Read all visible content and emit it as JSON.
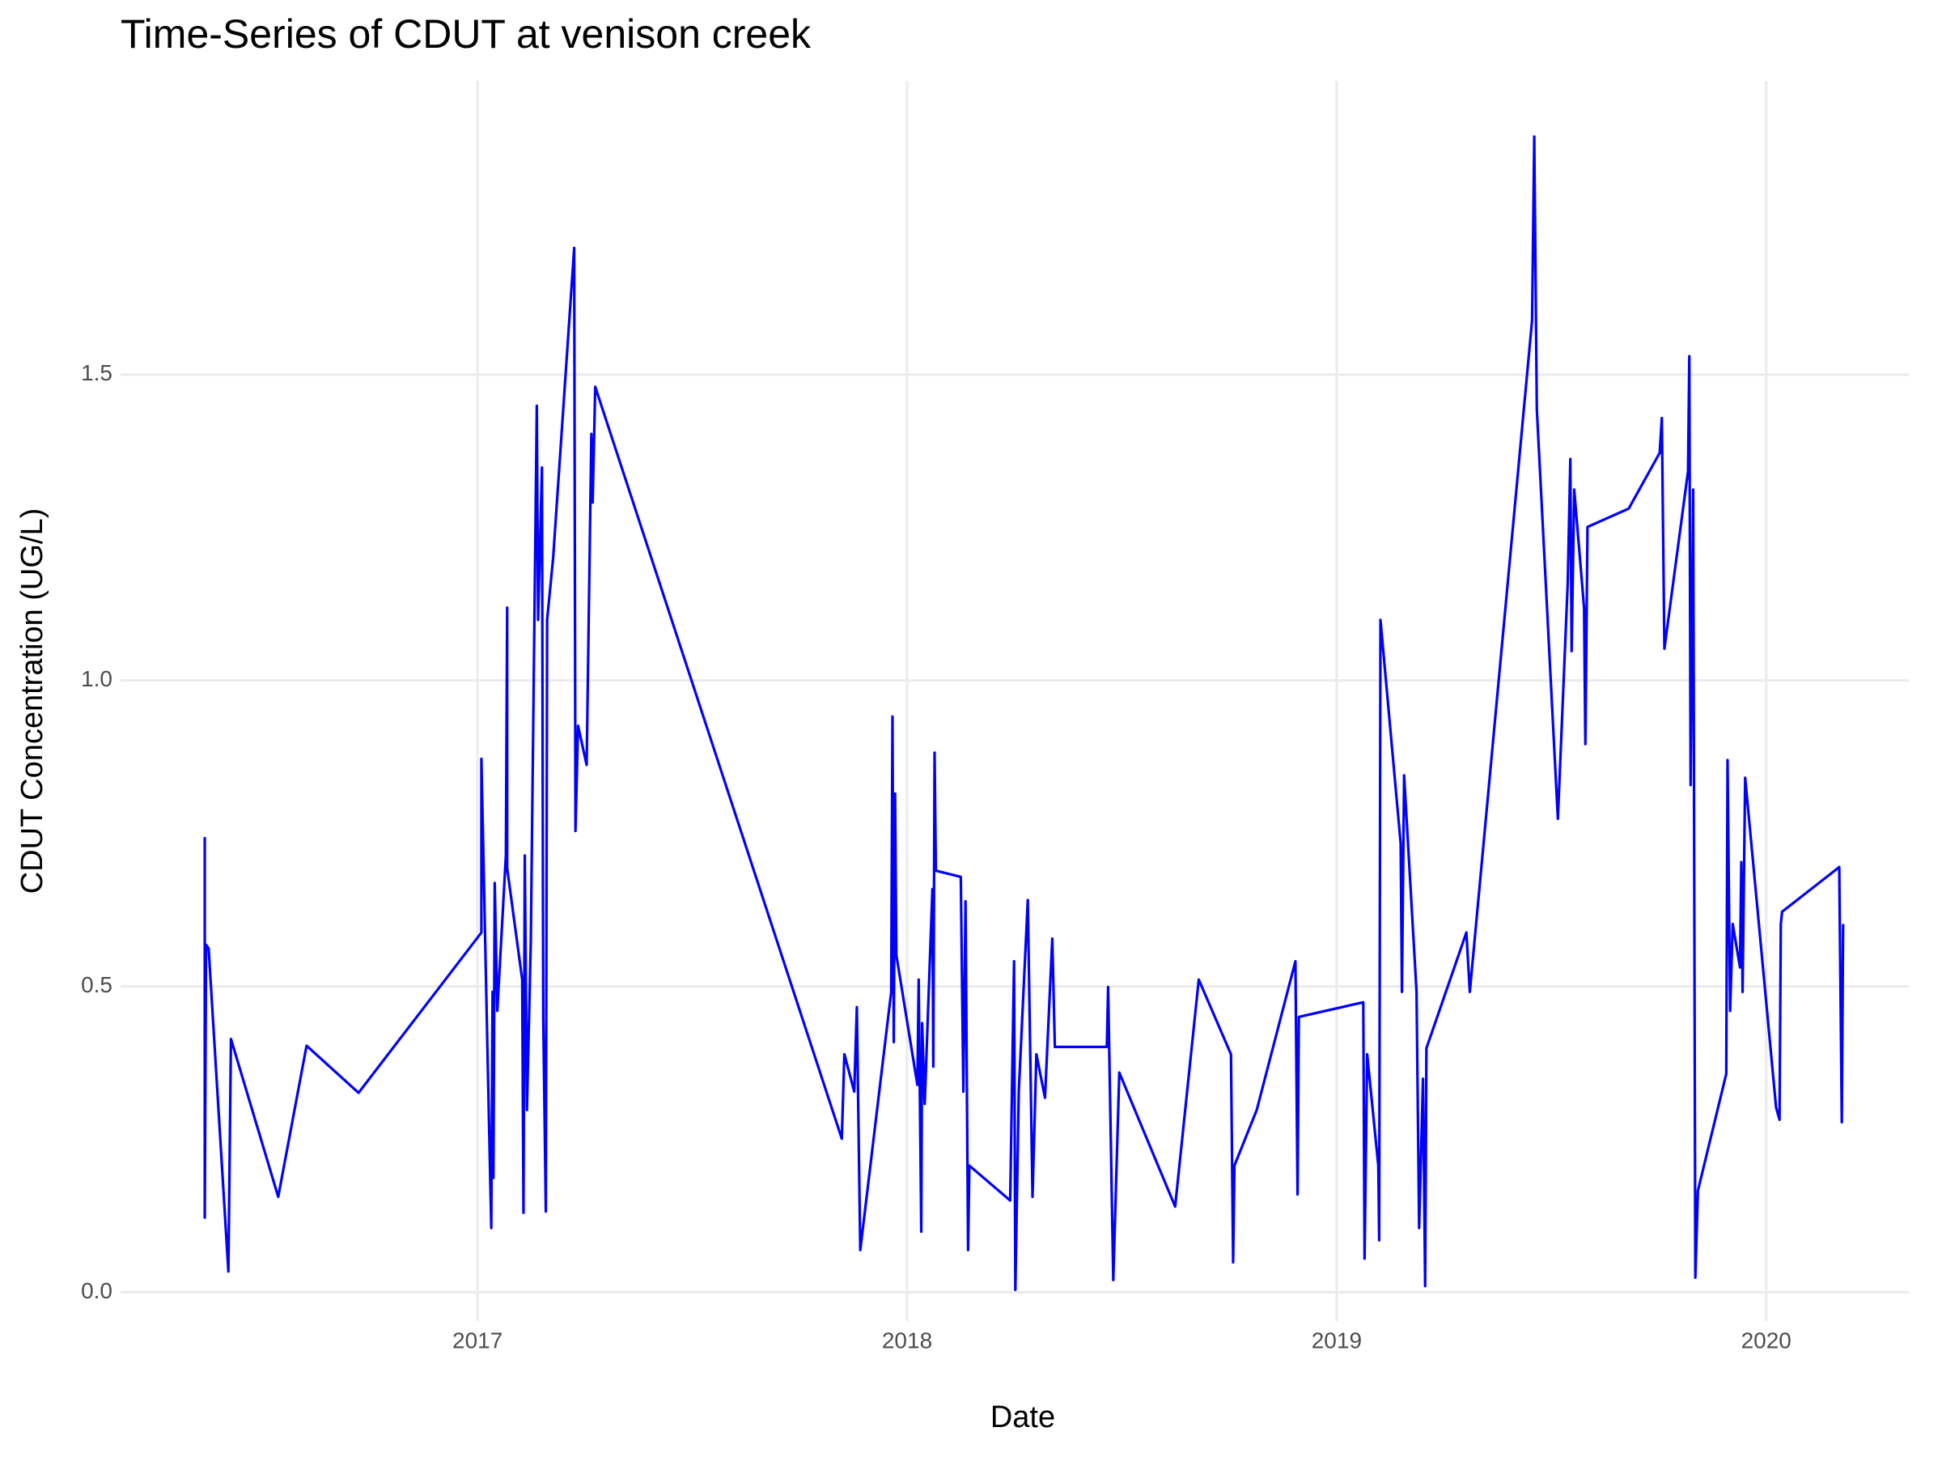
{
  "chart_data": {
    "type": "line",
    "title": "Time-Series of CDUT at venison creek",
    "x_label": "Date",
    "y_label": "CDUT Concentration (UG/L)",
    "xlim": [
      2016.169,
      2020.332
    ],
    "xticks": [
      2017,
      2018,
      2019,
      2020
    ],
    "ylim": [
      -0.047,
      1.98
    ],
    "yticks": [
      {
        "value": 0,
        "label": "0.0"
      },
      0.5,
      {
        "value": 1,
        "label": "1.0"
      },
      1.5
    ],
    "grid": true,
    "series": [
      {
        "name": "CDUT",
        "color": "#0000ff",
        "x": [
          2016.365,
          2016.365,
          2016.368,
          2016.374,
          2016.42,
          2016.426,
          2016.536,
          2016.602,
          2016.723,
          2017.009,
          2017.009,
          2017.023,
          2017.032,
          2017.035,
          2017.037,
          2017.04,
          2017.046,
          2017.058,
          2017.066,
          2017.069,
          2017.069,
          2017.104,
          2017.107,
          2017.11,
          2017.115,
          2017.124,
          2017.138,
          2017.141,
          2017.15,
          2017.153,
          2017.159,
          2017.162,
          2017.176,
          2017.225,
          2017.228,
          2017.234,
          2017.254,
          2017.265,
          2017.268,
          2017.274,
          2017.848,
          2017.854,
          2017.877,
          2017.883,
          2017.891,
          2017.963,
          2017.966,
          2017.969,
          2017.972,
          2017.975,
          2018.024,
          2018.027,
          2018.033,
          2018.035,
          2018.041,
          2018.059,
          2018.061,
          2018.064,
          2018.067,
          2018.125,
          2018.131,
          2018.136,
          2018.142,
          2018.145,
          2018.24,
          2018.249,
          2018.252,
          2018.26,
          2018.281,
          2018.292,
          2018.301,
          2018.321,
          2018.327,
          2018.338,
          2018.344,
          2018.465,
          2018.468,
          2018.48,
          2018.494,
          2018.624,
          2018.679,
          2018.754,
          2018.759,
          2018.762,
          2018.814,
          2018.904,
          2018.909,
          2018.912,
          2019.062,
          2019.065,
          2019.071,
          2019.097,
          2019.099,
          2019.102,
          2019.149,
          2019.152,
          2019.157,
          2019.186,
          2019.192,
          2019.201,
          2019.206,
          2019.209,
          2019.302,
          2019.31,
          2019.455,
          2019.46,
          2019.466,
          2019.515,
          2019.538,
          2019.544,
          2019.547,
          2019.553,
          2019.576,
          2019.579,
          2019.584,
          2019.68,
          2019.752,
          2019.757,
          2019.763,
          2019.818,
          2019.821,
          2019.824,
          2019.83,
          2019.835,
          2019.841,
          2019.907,
          2019.91,
          2019.916,
          2019.922,
          2019.939,
          2019.942,
          2019.945,
          2019.951,
          2020.023,
          2020.031,
          2020.034,
          2020.037,
          2020.17,
          2020.176,
          2020.179
        ],
        "values": [
          0.744,
          0.122,
          0.568,
          0.562,
          0.034,
          0.414,
          0.156,
          0.403,
          0.326,
          0.588,
          0.872,
          0.399,
          0.105,
          0.491,
          0.187,
          0.669,
          0.46,
          0.612,
          0.714,
          1.119,
          0.693,
          0.511,
          0.13,
          0.714,
          0.298,
          0.572,
          1.449,
          1.099,
          1.348,
          0.45,
          0.132,
          1.099,
          1.2,
          1.707,
          0.754,
          0.926,
          0.862,
          1.403,
          1.291,
          1.48,
          0.251,
          0.389,
          0.328,
          0.466,
          0.069,
          0.491,
          0.941,
          0.409,
          0.815,
          0.551,
          0.339,
          0.511,
          0.099,
          0.44,
          0.308,
          0.659,
          0.369,
          0.882,
          0.689,
          0.679,
          0.328,
          0.639,
          0.069,
          0.207,
          0.15,
          0.541,
          0.004,
          0.328,
          0.641,
          0.156,
          0.389,
          0.318,
          0.409,
          0.578,
          0.401,
          0.401,
          0.499,
          0.02,
          0.359,
          0.14,
          0.511,
          0.389,
          0.049,
          0.207,
          0.298,
          0.541,
          0.16,
          0.45,
          0.474,
          0.055,
          0.389,
          0.207,
          0.085,
          1.099,
          0.734,
          0.491,
          0.845,
          0.491,
          0.105,
          0.349,
          0.01,
          0.399,
          0.588,
          0.491,
          1.589,
          1.889,
          1.443,
          0.774,
          1.16,
          1.362,
          1.048,
          1.312,
          1.119,
          0.896,
          1.251,
          1.281,
          1.372,
          1.429,
          1.052,
          1.342,
          1.53,
          0.829,
          1.312,
          0.024,
          0.166,
          0.357,
          0.87,
          0.46,
          0.602,
          0.531,
          0.703,
          0.491,
          0.841,
          0.302,
          0.282,
          0.602,
          0.622,
          0.695,
          0.278,
          0.602
        ]
      }
    ]
  }
}
